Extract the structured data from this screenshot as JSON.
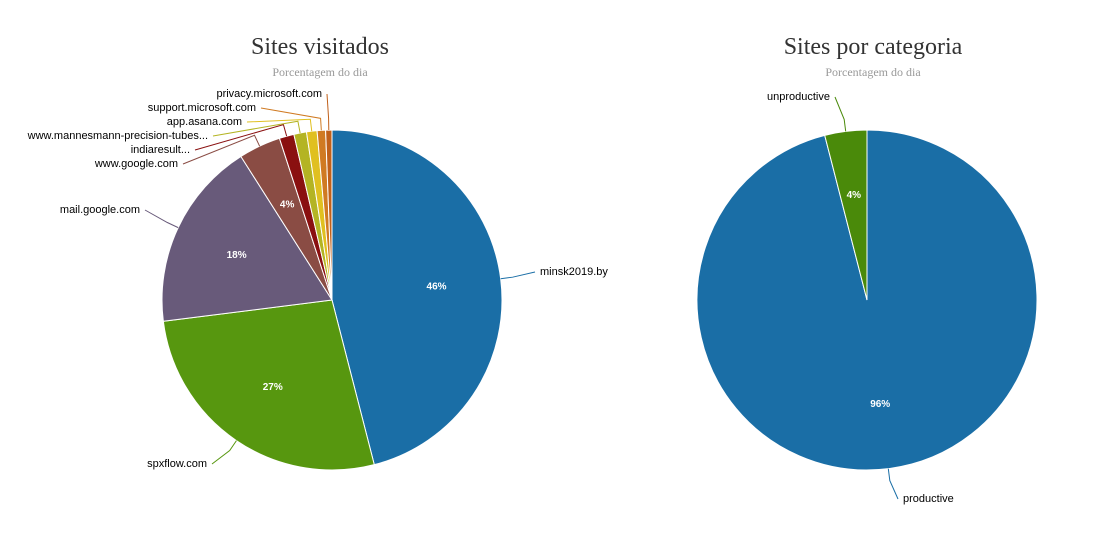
{
  "chart_data": [
    {
      "type": "pie",
      "title": "Sites visitados",
      "subtitle": "Porcentagem do dia",
      "categories": [
        "minsk2019.by",
        "spxflow.com",
        "mail.google.com",
        "www.google.com",
        "indiaresult...",
        "www.mannesmann-precision-tubes...",
        "app.asana.com",
        "support.microsoft.com",
        "privacy.microsoft.com"
      ],
      "values": [
        46,
        27,
        18,
        4,
        1.4,
        1.2,
        1.0,
        0.8,
        0.6
      ],
      "value_labels": [
        "46%",
        "27%",
        "18%",
        "4%",
        null,
        null,
        null,
        null,
        null
      ],
      "colors": [
        "#1a6ea6",
        "#57970f",
        "#685a7a",
        "#8a4c44",
        "#8a1010",
        "#b4b423",
        "#e0c020",
        "#d07a22",
        "#c0601a"
      ]
    },
    {
      "type": "pie",
      "title": "Sites por categoria",
      "subtitle": "Porcentagem do dia",
      "categories": [
        "productive",
        "unproductive"
      ],
      "values": [
        96,
        4
      ],
      "value_labels": [
        "96%",
        "4%"
      ],
      "colors": [
        "#1a6ea6",
        "#4a8a0a"
      ]
    }
  ]
}
